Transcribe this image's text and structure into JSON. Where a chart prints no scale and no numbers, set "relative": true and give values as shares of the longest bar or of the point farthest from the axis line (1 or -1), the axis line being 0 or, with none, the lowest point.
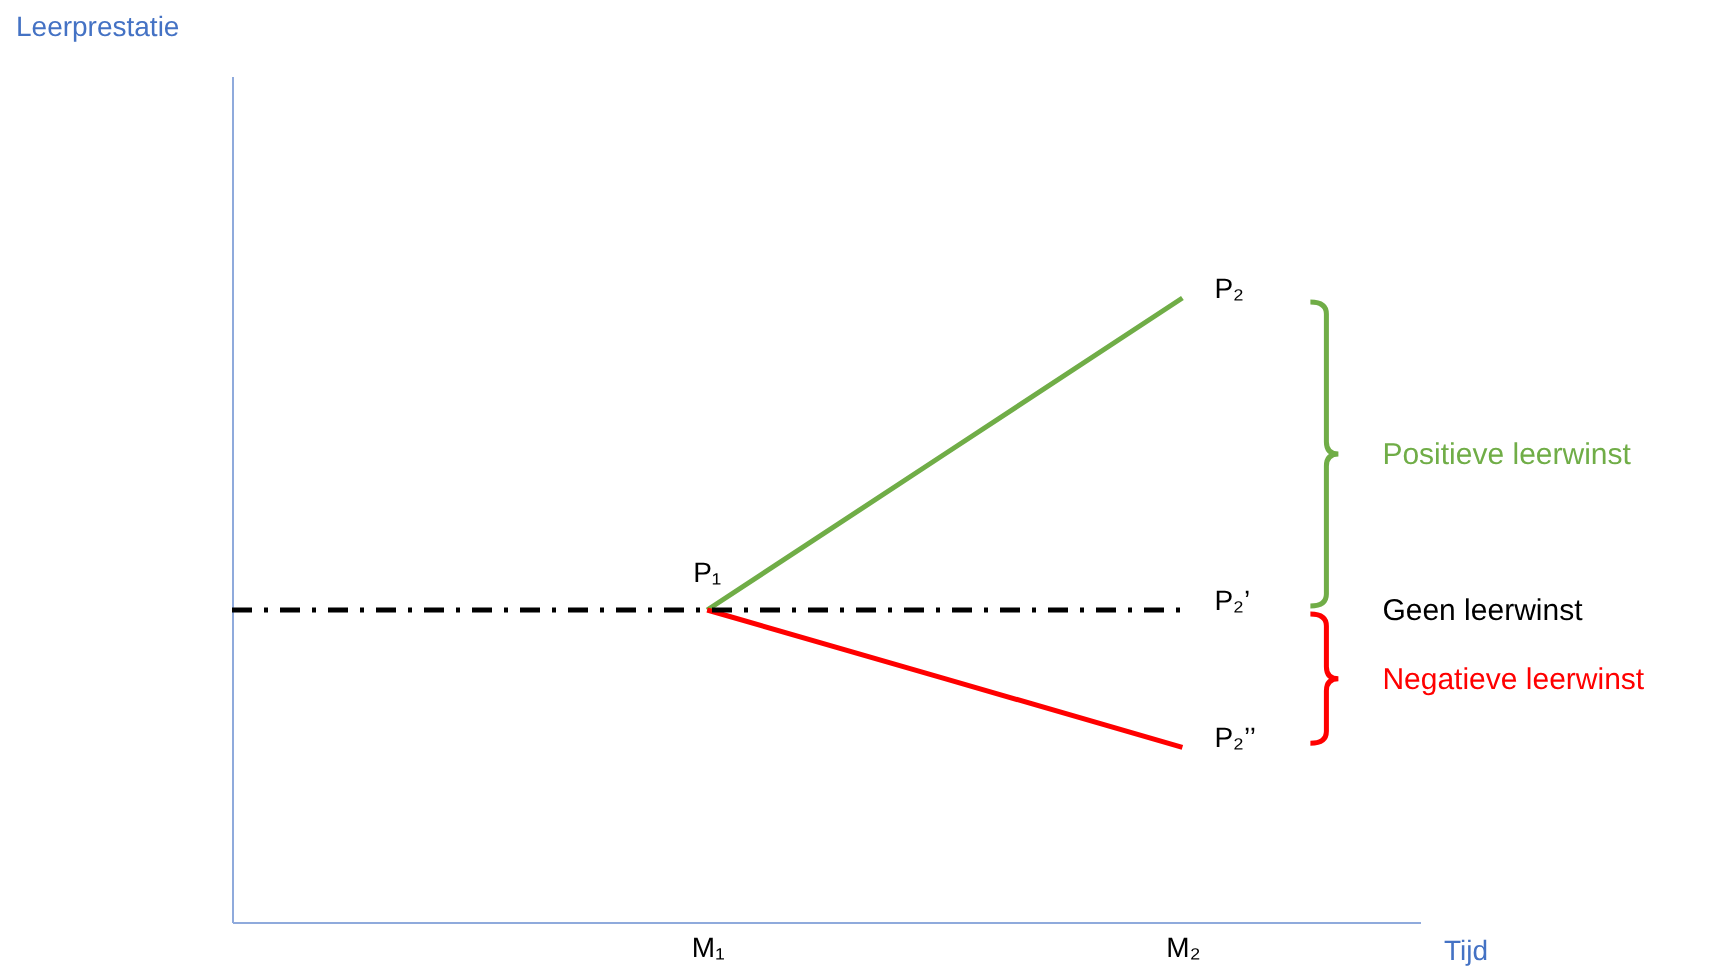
{
  "chart_data": {
    "type": "line",
    "relative": true,
    "categories": [
      null,
      null,
      "M₁",
      null,
      "M₂",
      null
    ],
    "series": [
      {
        "color": "#70ad47",
        "values": [
          null,
          null,
          0.5,
          0.75,
          1,
          null
        ]
      },
      {
        "color": "#ff0000",
        "values": [
          null,
          null,
          0.5,
          0.39,
          0.28,
          null
        ]
      },
      {
        "color": "#000000",
        "values": [
          0.5,
          0.5,
          0.5,
          0.5,
          0.5,
          null
        ],
        "line_style": "dashed"
      }
    ],
    "annotations": [
      "Leerprestatie",
      "Tijd",
      "Positieve leerwinst",
      "Geen leerwinst",
      "Negatieve leerwinst",
      {
        "text": "P₁",
        "x": "M₁",
        "y": 0.5
      },
      {
        "text": "P₂",
        "x": "M₂",
        "y": 1
      },
      {
        "text": "P₂’",
        "x": "M₂",
        "y": 0.5
      },
      {
        "text": "P₂’’",
        "x": "M₂",
        "y": 0.28
      }
    ]
  }
}
